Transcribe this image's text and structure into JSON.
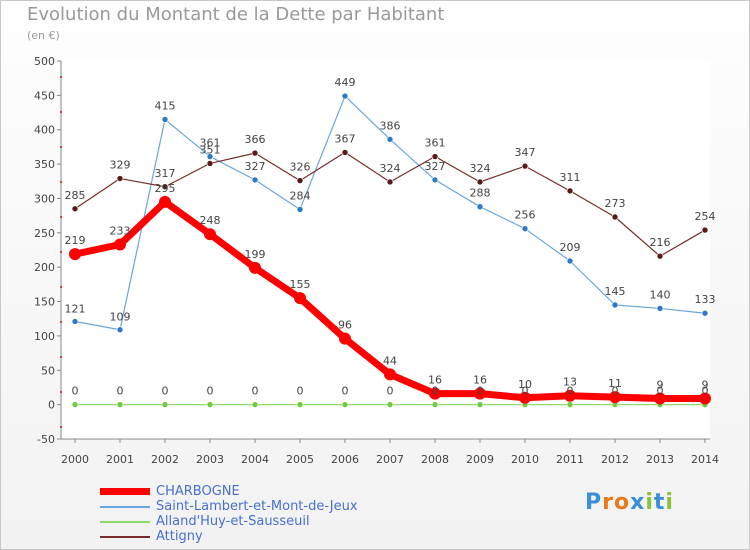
{
  "title": "Evolution du Montant de la Dette par Habitant",
  "subtitle": "(en €)",
  "logo": {
    "text": "Proxiti",
    "letters": [
      "P",
      "r",
      "o",
      "x",
      "i",
      "t",
      "i"
    ],
    "colors": [
      "#3a8fd8",
      "#e87a1a",
      "#e87a1a",
      "#3a8fd8",
      "#8ac43a",
      "#3a8fd8",
      "#8ac43a"
    ]
  },
  "chart_data": {
    "type": "line",
    "x": [
      2000,
      2001,
      2002,
      2003,
      2004,
      2005,
      2006,
      2007,
      2008,
      2009,
      2010,
      2011,
      2012,
      2013,
      2014
    ],
    "ylim": [
      -50,
      500
    ],
    "yticks": [
      -50,
      0,
      50,
      100,
      150,
      200,
      250,
      300,
      350,
      400,
      450,
      500
    ],
    "grid": false,
    "legend_position": "bottom-left",
    "series": [
      {
        "name": "CHARBOGNE",
        "color": "#ff0000",
        "values": [
          219,
          233,
          295,
          248,
          199,
          155,
          96,
          44,
          16,
          16,
          10,
          13,
          11,
          9,
          9
        ]
      },
      {
        "name": "Saint-Lambert-et-Mont-de-Jeux",
        "color": "#6aa6dc",
        "values": [
          121,
          109,
          415,
          361,
          327,
          284,
          449,
          386,
          327,
          288,
          256,
          209,
          145,
          140,
          133
        ]
      },
      {
        "name": "Alland'Huy-et-Sausseuil",
        "color": "#8fd86a",
        "values": [
          0,
          0,
          0,
          0,
          0,
          0,
          0,
          0,
          0,
          0,
          0,
          0,
          0,
          0,
          0
        ]
      },
      {
        "name": "Attigny",
        "color": "#7a2a2a",
        "values": [
          285,
          329,
          317,
          351,
          366,
          326,
          367,
          324,
          361,
          324,
          347,
          311,
          273,
          216,
          254
        ]
      }
    ]
  }
}
